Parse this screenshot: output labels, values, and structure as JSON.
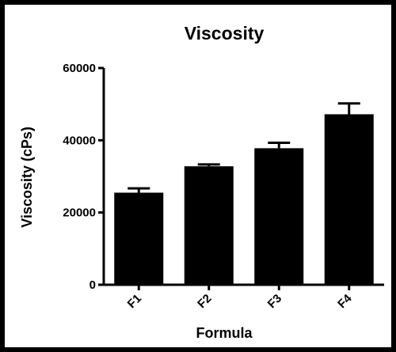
{
  "chart_data": {
    "type": "bar",
    "title": "Viscosity",
    "xlabel": "Formula",
    "ylabel": "Viscosity (cPs)",
    "categories": [
      "F1",
      "F2",
      "F3",
      "F4"
    ],
    "values": [
      25500,
      32800,
      37800,
      47200
    ],
    "errors": [
      1200,
      500,
      1500,
      3000
    ],
    "ylim": [
      0,
      60000
    ],
    "yticks": [
      0,
      20000,
      40000,
      60000
    ],
    "ytick_labels": [
      "0",
      "20000",
      "40000",
      "60000"
    ],
    "bar_color": "#000000",
    "grid": false,
    "legend": "none"
  }
}
